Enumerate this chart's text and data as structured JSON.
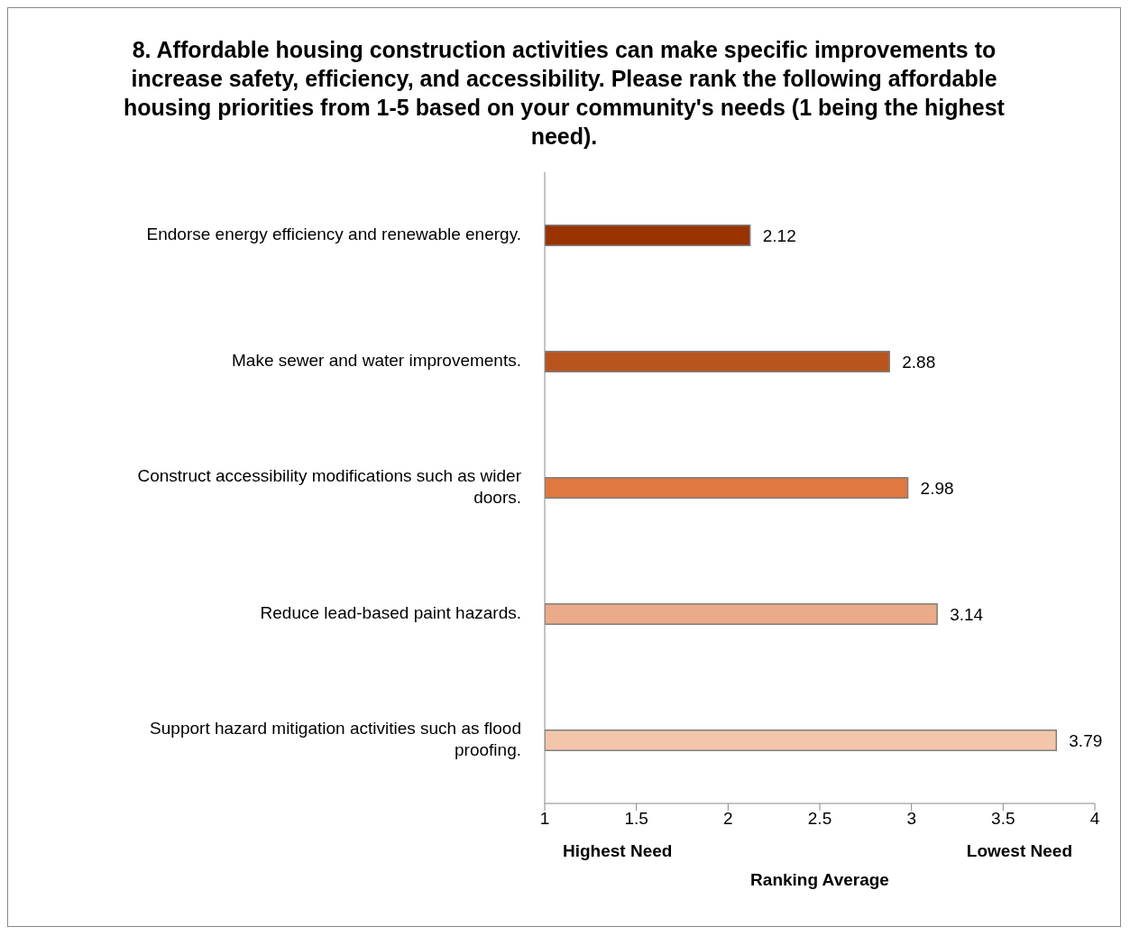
{
  "chart_data": {
    "type": "bar",
    "orientation": "horizontal",
    "title": "8. Affordable housing construction activities can make specific improvements to increase safety, efficiency, and accessibility.  Please rank the following affordable housing priorities from 1-5 based on your community's needs (1 being the highest need).",
    "xlabel": "Ranking Average",
    "annotations": [
      "Highest Need",
      "Lowest Need"
    ],
    "categories": [
      "Endorse energy efficiency and renewable energy.",
      "Make sewer and water improvements.",
      "Construct accessibility modifications such as wider doors.",
      "Reduce lead-based paint hazards.",
      "Support hazard mitigation activities such as flood proofing."
    ],
    "values": [
      2.12,
      2.88,
      2.98,
      3.14,
      3.79
    ],
    "colors": [
      "#993300",
      "#b8541e",
      "#e07840",
      "#ebab88",
      "#f3c6ab"
    ],
    "xlim": [
      1,
      4
    ],
    "xticks": [
      1,
      1.5,
      2,
      2.5,
      3,
      3.5,
      4
    ],
    "data_labels": true,
    "grid": false,
    "legend": false
  }
}
